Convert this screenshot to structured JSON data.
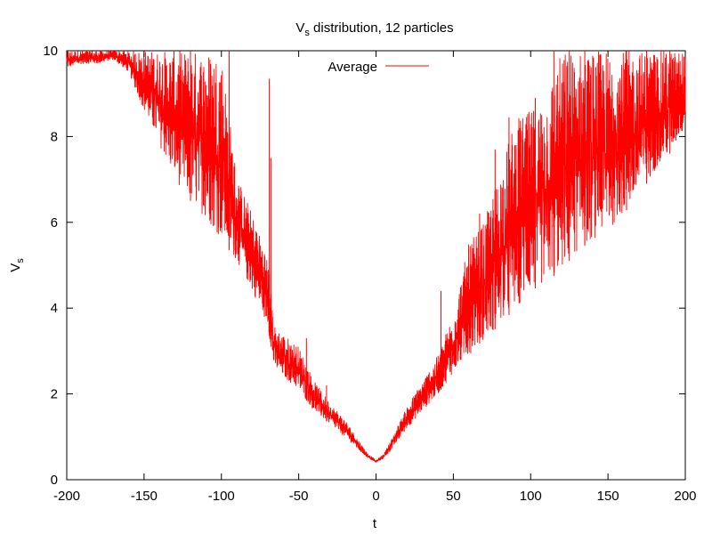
{
  "chart_data": {
    "type": "line",
    "title": "V",
    "title_subscript": "s",
    "title_rest": " distribution, 12 particles",
    "xlabel": "t",
    "ylabel": "V",
    "ylabel_subscript": "s",
    "xlim": [
      -200,
      200
    ],
    "ylim": [
      0,
      10
    ],
    "x_ticks": [
      -200,
      -150,
      -100,
      -50,
      0,
      50,
      100,
      150,
      200
    ],
    "y_ticks": [
      0,
      2,
      4,
      6,
      8,
      10
    ],
    "x_tick_labels": [
      "-200",
      "-150",
      "-100",
      "-50",
      "0",
      "50",
      "100",
      "150",
      "200"
    ],
    "y_tick_labels": [
      "0",
      "2",
      "4",
      "6",
      "8",
      "10"
    ],
    "grid": false,
    "legend_position": "top-center",
    "series": [
      {
        "name": "Average",
        "color": "#ff0000",
        "x": [
          -200,
          -190,
          -180,
          -170,
          -160,
          -150,
          -140,
          -130,
          -120,
          -110,
          -100,
          -90,
          -80,
          -70,
          -66,
          -60,
          -50,
          -40,
          -30,
          -20,
          -10,
          -5,
          0,
          5,
          10,
          20,
          30,
          40,
          50,
          60,
          70,
          80,
          90,
          100,
          110,
          120,
          130,
          140,
          150,
          160,
          170,
          180,
          190,
          200
        ],
        "y_low": [
          9.6,
          9.7,
          9.7,
          9.8,
          9.5,
          8.6,
          7.8,
          7.0,
          6.5,
          6.1,
          5.6,
          5.1,
          4.4,
          3.6,
          2.6,
          2.4,
          2.1,
          1.6,
          1.3,
          1.0,
          0.65,
          0.5,
          0.4,
          0.5,
          0.7,
          1.2,
          1.6,
          2.0,
          2.5,
          2.9,
          3.3,
          3.6,
          4.0,
          4.4,
          4.6,
          4.9,
          5.3,
          5.6,
          5.8,
          6.2,
          6.6,
          7.2,
          7.6,
          8.2
        ],
        "y_high": [
          10,
          10,
          10,
          10,
          10,
          10,
          10,
          10,
          10,
          10,
          10,
          7.1,
          6.2,
          5.2,
          3.6,
          3.4,
          3.1,
          2.3,
          1.8,
          1.4,
          0.85,
          0.6,
          0.45,
          0.6,
          0.95,
          1.7,
          2.3,
          2.9,
          3.9,
          5.5,
          6.0,
          7.2,
          8.4,
          8.6,
          9.0,
          10,
          10,
          10,
          10,
          10,
          10,
          10,
          10,
          10
        ],
        "spikes": [
          [
            -170,
            10
          ],
          [
            -120,
            10
          ],
          [
            -95,
            10
          ],
          [
            -69,
            9.35
          ],
          [
            -68,
            7.5
          ],
          [
            -45,
            3.3
          ],
          [
            -32,
            2.2
          ],
          [
            42,
            4.4
          ],
          [
            67,
            6.2
          ],
          [
            77,
            7.7
          ],
          [
            86,
            8.45
          ],
          [
            93,
            8.2
          ],
          [
            103,
            8.9
          ],
          [
            115,
            10
          ],
          [
            125,
            10
          ],
          [
            135,
            10
          ],
          [
            162,
            10
          ],
          [
            175,
            10
          ],
          [
            190,
            10
          ]
        ]
      }
    ]
  }
}
